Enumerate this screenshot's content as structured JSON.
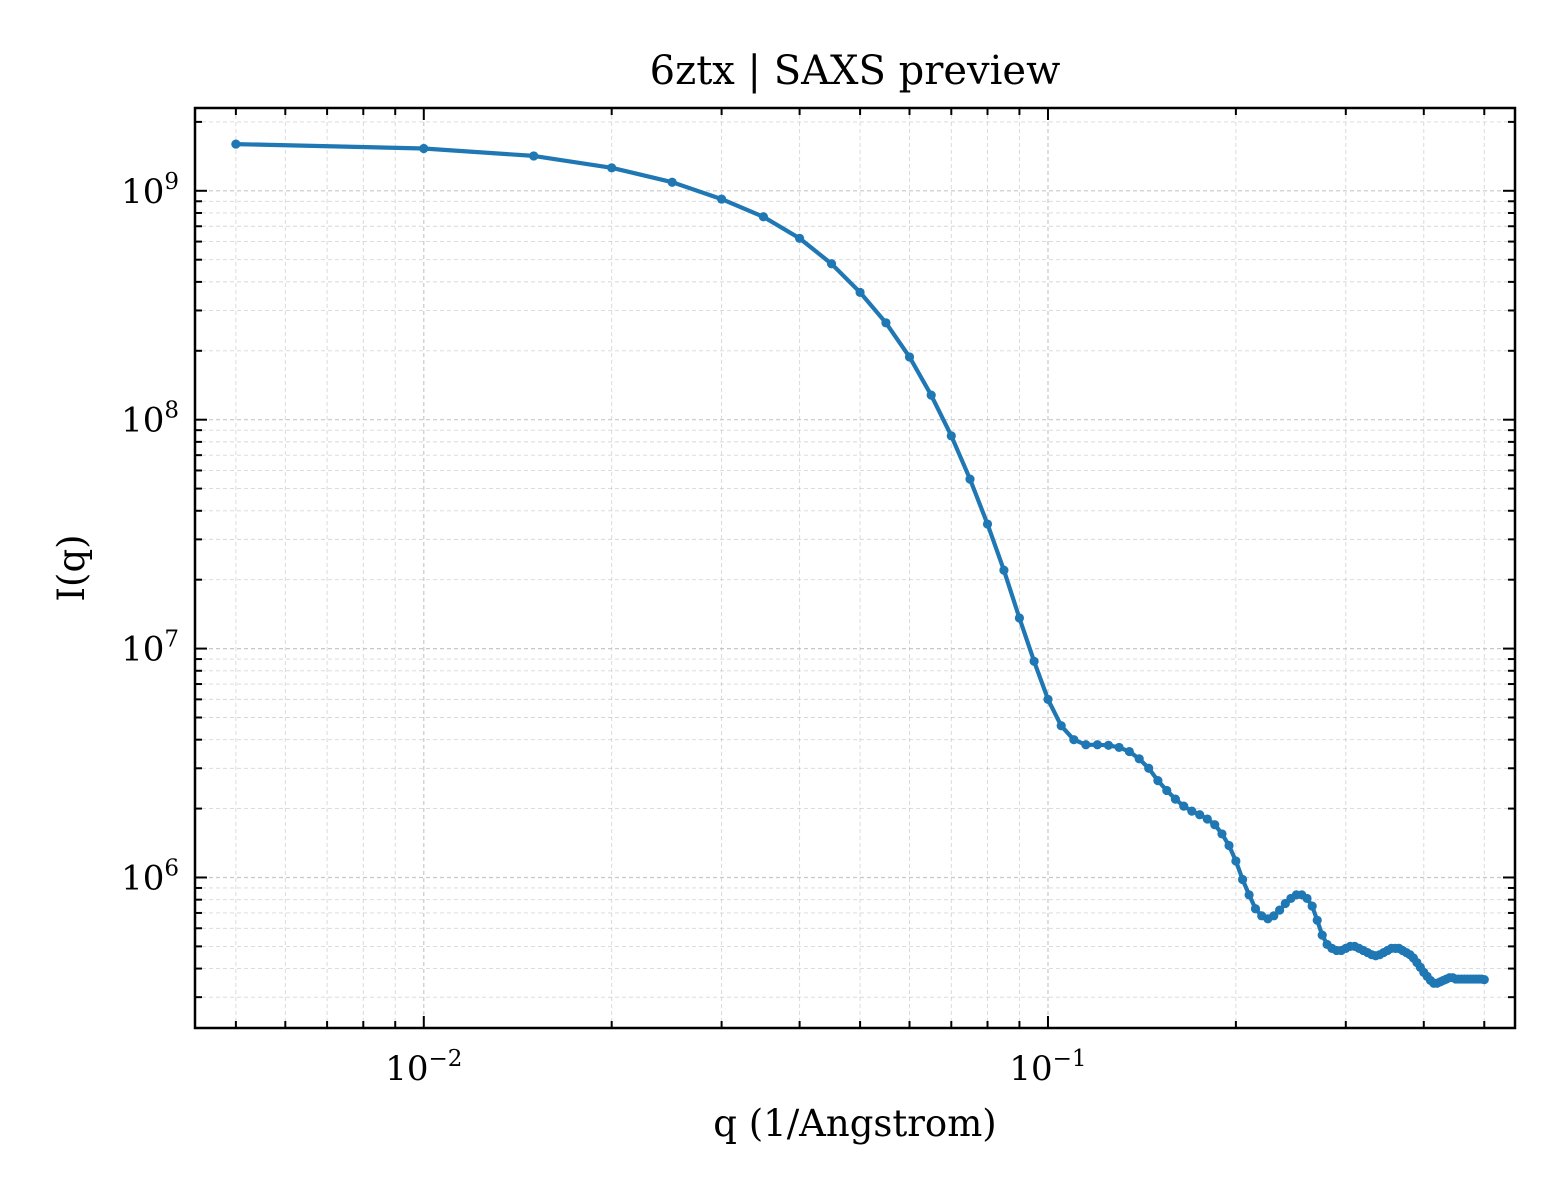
{
  "chart_data": {
    "type": "line",
    "title": "6ztx | SAXS preview",
    "xlabel": "q (1/Angstrom)",
    "ylabel": "I(q)",
    "x_scale": "log",
    "y_scale": "log",
    "xlim": [
      0.0043,
      0.56
    ],
    "ylim": [
      220000,
      2300000000
    ],
    "x_ticks": [
      {
        "value": 0.01,
        "base": "10",
        "exp": "−2"
      },
      {
        "value": 0.1,
        "base": "10",
        "exp": "−1"
      }
    ],
    "y_ticks": [
      {
        "value": 1000000,
        "base": "10",
        "exp": "6"
      },
      {
        "value": 10000000,
        "base": "10",
        "exp": "7"
      },
      {
        "value": 100000000,
        "base": "10",
        "exp": "8"
      },
      {
        "value": 1000000000,
        "base": "10",
        "exp": "9"
      }
    ],
    "grid": true,
    "color": "#1f77b4",
    "series": [
      {
        "x": [
          0.005,
          0.01,
          0.015,
          0.02,
          0.025,
          0.03,
          0.035,
          0.04,
          0.045,
          0.05,
          0.055,
          0.06,
          0.065,
          0.07,
          0.075,
          0.08,
          0.085,
          0.09,
          0.095,
          0.1,
          0.105,
          0.11,
          0.115,
          0.12,
          0.125,
          0.13,
          0.135,
          0.14,
          0.145,
          0.15,
          0.155,
          0.16,
          0.165,
          0.17,
          0.175,
          0.18,
          0.185,
          0.19,
          0.195,
          0.2,
          0.205,
          0.21,
          0.215,
          0.22,
          0.225,
          0.23,
          0.235,
          0.24,
          0.245,
          0.25,
          0.255,
          0.26,
          0.265,
          0.27,
          0.275,
          0.28,
          0.285,
          0.29,
          0.295,
          0.3,
          0.305,
          0.31,
          0.315,
          0.32,
          0.325,
          0.33,
          0.335,
          0.34,
          0.345,
          0.35,
          0.355,
          0.36,
          0.365,
          0.37,
          0.375,
          0.38,
          0.385,
          0.39,
          0.395,
          0.4,
          0.405,
          0.41,
          0.415,
          0.42,
          0.425,
          0.43,
          0.435,
          0.44,
          0.445,
          0.45,
          0.455,
          0.46,
          0.465,
          0.47,
          0.475,
          0.48,
          0.485,
          0.49,
          0.495,
          0.5
        ],
        "y": [
          1600000000,
          1530000000,
          1420000000,
          1260000000,
          1090000000,
          920000000,
          770000000,
          620000000,
          480000000,
          360000000,
          265000000,
          188000000,
          128000000,
          85000000,
          55000000,
          35000000,
          22000000,
          13600000,
          8800000,
          6000000,
          4600000,
          4000000,
          3800000,
          3800000,
          3780000,
          3700000,
          3550000,
          3300000,
          3000000,
          2650000,
          2400000,
          2200000,
          2050000,
          1950000,
          1880000,
          1800000,
          1700000,
          1550000,
          1380000,
          1180000,
          980000,
          840000,
          730000,
          680000,
          660000,
          680000,
          720000,
          770000,
          810000,
          840000,
          840000,
          810000,
          750000,
          650000,
          560000,
          510000,
          490000,
          480000,
          480000,
          490000,
          500000,
          500000,
          490000,
          480000,
          470000,
          460000,
          455000,
          460000,
          470000,
          480000,
          490000,
          490000,
          490000,
          480000,
          470000,
          460000,
          445000,
          425000,
          405000,
          385000,
          370000,
          355000,
          345000,
          345000,
          350000,
          355000,
          360000,
          365000,
          365000,
          360000,
          360000,
          360000,
          360000,
          360000,
          360000,
          360000,
          360000,
          360000,
          360000,
          358000
        ]
      }
    ]
  }
}
